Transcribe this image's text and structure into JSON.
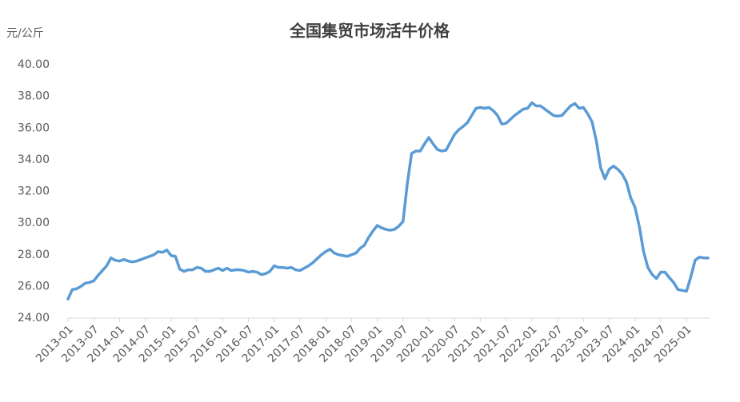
{
  "chart_data": {
    "type": "line",
    "title": "全国集贸市场活牛价格",
    "y_label": "元/公斤",
    "categories": [
      "2013-01",
      null,
      null,
      null,
      null,
      null,
      "2013-07",
      null,
      null,
      null,
      null,
      null,
      "2014-01",
      null,
      null,
      null,
      null,
      null,
      "2014-07",
      null,
      null,
      null,
      null,
      null,
      "2015-01",
      null,
      null,
      null,
      null,
      null,
      "2015-07",
      null,
      null,
      null,
      null,
      null,
      "2016-01",
      null,
      null,
      null,
      null,
      null,
      "2016-07",
      null,
      null,
      null,
      null,
      null,
      "2017-01",
      null,
      null,
      null,
      null,
      null,
      "2017-07",
      null,
      null,
      null,
      null,
      null,
      "2018-01",
      null,
      null,
      null,
      null,
      null,
      "2018-07",
      null,
      null,
      null,
      null,
      null,
      "2019-01",
      null,
      null,
      null,
      null,
      null,
      "2019-07",
      null,
      null,
      null,
      null,
      null,
      "2020-01",
      null,
      null,
      null,
      null,
      null,
      "2020-07",
      null,
      null,
      null,
      null,
      null,
      "2021-01",
      null,
      null,
      null,
      null,
      null,
      "2021-07",
      null,
      null,
      null,
      null,
      null,
      "2022-01",
      null,
      null,
      null,
      null,
      null,
      "2022-07",
      null,
      null,
      null,
      null,
      null,
      "2023-01",
      null,
      null,
      null,
      null,
      null,
      "2023-07",
      null,
      null,
      null,
      null,
      null,
      "2024-01",
      null,
      null,
      null,
      null,
      null,
      "2024-07",
      null,
      null,
      null,
      null,
      null,
      "2025-01",
      null,
      null,
      null,
      null,
      null
    ],
    "series": [
      {
        "color": "#5b9bd5",
        "values": [
          25.2,
          25.8,
          25.85,
          26.0,
          26.2,
          26.25,
          26.35,
          26.7,
          27.0,
          27.3,
          27.8,
          27.65,
          27.6,
          27.7,
          27.6,
          27.55,
          27.6,
          27.7,
          27.8,
          27.9,
          28.0,
          28.2,
          28.15,
          28.3,
          27.95,
          27.9,
          27.1,
          26.95,
          27.05,
          27.05,
          27.2,
          27.15,
          26.95,
          26.95,
          27.05,
          27.15,
          27.0,
          27.15,
          27.0,
          27.05,
          27.05,
          27.0,
          26.9,
          26.95,
          26.9,
          26.75,
          26.8,
          26.95,
          27.3,
          27.2,
          27.2,
          27.15,
          27.2,
          27.05,
          27.0,
          27.15,
          27.3,
          27.5,
          27.75,
          28.0,
          28.2,
          28.35,
          28.1,
          28.0,
          27.95,
          27.9,
          28.0,
          28.1,
          28.4,
          28.6,
          29.1,
          29.5,
          29.85,
          29.7,
          29.6,
          29.55,
          29.6,
          29.8,
          30.1,
          32.5,
          34.4,
          34.55,
          34.55,
          35.0,
          35.4,
          35.0,
          34.65,
          34.55,
          34.6,
          35.1,
          35.6,
          35.9,
          36.1,
          36.35,
          36.8,
          37.25,
          37.3,
          37.25,
          37.3,
          37.1,
          36.8,
          36.25,
          36.3,
          36.55,
          36.8,
          37.0,
          37.2,
          37.25,
          37.6,
          37.4,
          37.4,
          37.2,
          37.0,
          36.8,
          36.75,
          36.8,
          37.1,
          37.4,
          37.55,
          37.25,
          37.3,
          36.9,
          36.4,
          35.2,
          33.5,
          32.8,
          33.4,
          33.6,
          33.4,
          33.1,
          32.6,
          31.6,
          31.0,
          29.8,
          28.2,
          27.2,
          26.75,
          26.5,
          26.9,
          26.9,
          26.55,
          26.25,
          25.8,
          25.75,
          25.7,
          26.6,
          27.65,
          27.85,
          27.8,
          27.8
        ]
      }
    ],
    "ylim": [
      24,
      40
    ],
    "yticks": [
      {
        "value": 24,
        "label": "24.00"
      },
      {
        "value": 26,
        "label": "26.00"
      },
      {
        "value": 28,
        "label": "28.00"
      },
      {
        "value": 30,
        "label": "30.00"
      },
      {
        "value": 32,
        "label": "32.00"
      },
      {
        "value": 34,
        "label": "34.00"
      },
      {
        "value": 36,
        "label": "36.00"
      },
      {
        "value": 38,
        "label": "38.00"
      },
      {
        "value": 40,
        "label": "40.00"
      }
    ],
    "grid": false
  }
}
